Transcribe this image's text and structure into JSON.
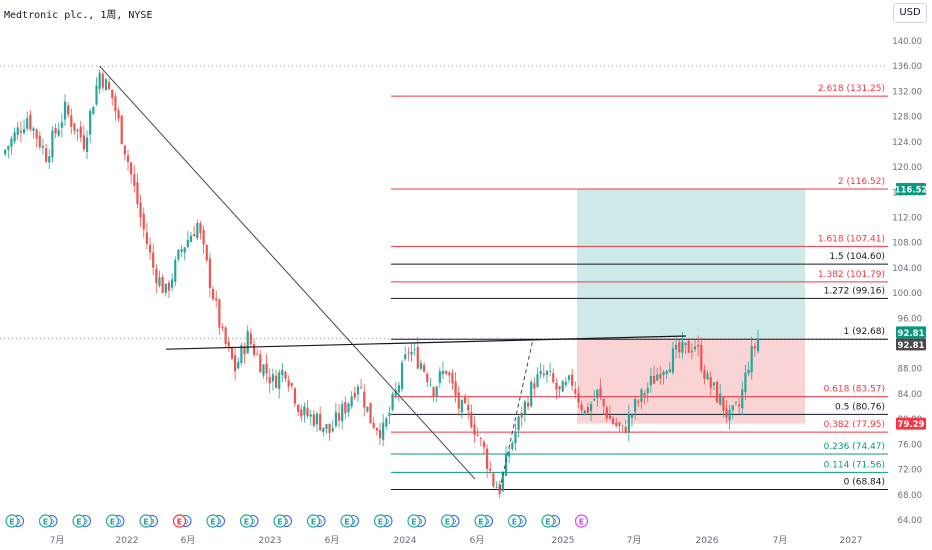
{
  "header": {
    "symbol_title": "Medtronic plc., 1周, NYSE",
    "currency_button": "USD"
  },
  "colors": {
    "up": "#26a69a",
    "down": "#ef5350",
    "fib_red": "#f23645",
    "fib_black": "#131722",
    "fib_teal": "#089981",
    "target_zone": "#b2dfdb",
    "stop_zone": "#f8c6c6",
    "label_price_bg": "#4a4a4a",
    "label_target_bg": "#089981",
    "label_stop_bg": "#f23645"
  },
  "chart_data": {
    "type": "candlestick",
    "title": "Medtronic plc., 1周, NYSE",
    "currency": "USD",
    "y_axis_ticks": [
      "140.00",
      "136.00",
      "132.00",
      "128.00",
      "124.00",
      "120.00",
      "116.00",
      "112.00",
      "108.00",
      "104.00",
      "100.00",
      "96.00",
      "92.00",
      "88.00",
      "84.00",
      "80.00",
      "76.00",
      "72.00",
      "68.00",
      "64.00"
    ],
    "ylim": [
      64,
      140
    ],
    "x_axis_labels": [
      "7月",
      "2022",
      "6月",
      "2023",
      "6月",
      "2024",
      "6月",
      "2025",
      "7月",
      "2026",
      "7月",
      "2027"
    ],
    "price_labels": [
      {
        "text": "92.81",
        "value": 92.81,
        "style": "target"
      },
      {
        "text": "116.52",
        "value": 116.52,
        "style": "target"
      },
      {
        "text": "92.81",
        "value": 92.81,
        "style": "price"
      },
      {
        "text": "79.29",
        "value": 79.29,
        "style": "stop"
      }
    ],
    "fibonacci_levels": [
      {
        "label": "2.618 (131.25)",
        "value": 131.25,
        "color": "red"
      },
      {
        "label": "2 (116.52)",
        "value": 116.52,
        "color": "red"
      },
      {
        "label": "1.618 (107.41)",
        "value": 107.41,
        "color": "red"
      },
      {
        "label": "1.5 (104.60)",
        "value": 104.6,
        "color": "black"
      },
      {
        "label": "1.382 (101.79)",
        "value": 101.79,
        "color": "red"
      },
      {
        "label": "1.272 (99.16)",
        "value": 99.16,
        "color": "black"
      },
      {
        "label": "1 (92.68)",
        "value": 92.68,
        "color": "black"
      },
      {
        "label": "0.618 (83.57)",
        "value": 83.57,
        "color": "red"
      },
      {
        "label": "0.5 (80.76)",
        "value": 80.76,
        "color": "black"
      },
      {
        "label": "0.382 (77.95)",
        "value": 77.95,
        "color": "red"
      },
      {
        "label": "0.236 (74.47)",
        "value": 74.47,
        "color": "teal"
      },
      {
        "label": "0.114 (71.56)",
        "value": 71.56,
        "color": "teal"
      },
      {
        "label": "0 (68.84)",
        "value": 68.84,
        "color": "black"
      }
    ],
    "position_tool": {
      "entry": 92.81,
      "target": 116.52,
      "stop": 79.29
    },
    "dotted_levels": [
      136.0,
      92.81
    ],
    "earnings_markers": [
      {
        "text": "E",
        "color": "teal"
      },
      {
        "text": "E",
        "color": "teal"
      },
      {
        "text": "E",
        "color": "teal"
      },
      {
        "text": "E",
        "color": "teal"
      },
      {
        "text": "E",
        "color": "teal"
      },
      {
        "text": "E",
        "color": "red"
      },
      {
        "text": "E",
        "color": "teal"
      },
      {
        "text": "E",
        "color": "teal"
      },
      {
        "text": "E",
        "color": "teal"
      },
      {
        "text": "E",
        "color": "teal"
      },
      {
        "text": "E",
        "color": "teal"
      },
      {
        "text": "E",
        "color": "teal"
      },
      {
        "text": "E",
        "color": "teal"
      },
      {
        "text": "E",
        "color": "teal"
      },
      {
        "text": "E",
        "color": "teal"
      },
      {
        "text": "E",
        "color": "teal"
      },
      {
        "text": "E",
        "color": "teal"
      },
      {
        "text": "E",
        "color": "magenta"
      }
    ],
    "price_path_keypoints": [
      {
        "t": 0,
        "close": 122
      },
      {
        "t": 8,
        "close": 128
      },
      {
        "t": 14,
        "close": 122
      },
      {
        "t": 20,
        "close": 129
      },
      {
        "t": 26,
        "close": 124
      },
      {
        "t": 31,
        "close": 135
      },
      {
        "t": 35,
        "close": 131
      },
      {
        "t": 40,
        "close": 121
      },
      {
        "t": 44,
        "close": 112
      },
      {
        "t": 48,
        "close": 104
      },
      {
        "t": 52,
        "close": 100
      },
      {
        "t": 57,
        "close": 107
      },
      {
        "t": 62,
        "close": 111
      },
      {
        "t": 66,
        "close": 102
      },
      {
        "t": 70,
        "close": 93
      },
      {
        "t": 74,
        "close": 88
      },
      {
        "t": 78,
        "close": 93
      },
      {
        "t": 82,
        "close": 89
      },
      {
        "t": 86,
        "close": 86
      },
      {
        "t": 90,
        "close": 88
      },
      {
        "t": 95,
        "close": 81
      },
      {
        "t": 100,
        "close": 80
      },
      {
        "t": 104,
        "close": 78
      },
      {
        "t": 109,
        "close": 82
      },
      {
        "t": 113,
        "close": 86
      },
      {
        "t": 117,
        "close": 80
      },
      {
        "t": 121,
        "close": 78
      },
      {
        "t": 125,
        "close": 84
      },
      {
        "t": 129,
        "close": 91
      },
      {
        "t": 133,
        "close": 89
      },
      {
        "t": 137,
        "close": 85
      },
      {
        "t": 141,
        "close": 88
      },
      {
        "t": 145,
        "close": 82
      },
      {
        "t": 149,
        "close": 80
      },
      {
        "t": 153,
        "close": 75
      },
      {
        "t": 156,
        "close": 70
      },
      {
        "t": 158,
        "close": 69
      },
      {
        "t": 161,
        "close": 75
      },
      {
        "t": 165,
        "close": 81
      },
      {
        "t": 169,
        "close": 86
      },
      {
        "t": 173,
        "close": 87
      },
      {
        "t": 177,
        "close": 84
      },
      {
        "t": 181,
        "close": 86
      },
      {
        "t": 185,
        "close": 81
      },
      {
        "t": 189,
        "close": 84
      },
      {
        "t": 193,
        "close": 80
      },
      {
        "t": 197,
        "close": 78
      },
      {
        "t": 201,
        "close": 82
      },
      {
        "t": 205,
        "close": 85
      },
      {
        "t": 209,
        "close": 88
      },
      {
        "t": 213,
        "close": 90
      },
      {
        "t": 217,
        "close": 91
      },
      {
        "t": 220,
        "close": 92
      },
      {
        "t": 224,
        "close": 86
      },
      {
        "t": 228,
        "close": 83
      },
      {
        "t": 231,
        "close": 80
      },
      {
        "t": 234,
        "close": 82
      },
      {
        "t": 237,
        "close": 89
      },
      {
        "t": 240,
        "close": 92.81
      }
    ],
    "annotations": [
      "Descending trendline from 136 high to 2023 low",
      "Horizontal neckline near 92.7",
      "Dashed line from 2023 low to 2025 high"
    ]
  }
}
